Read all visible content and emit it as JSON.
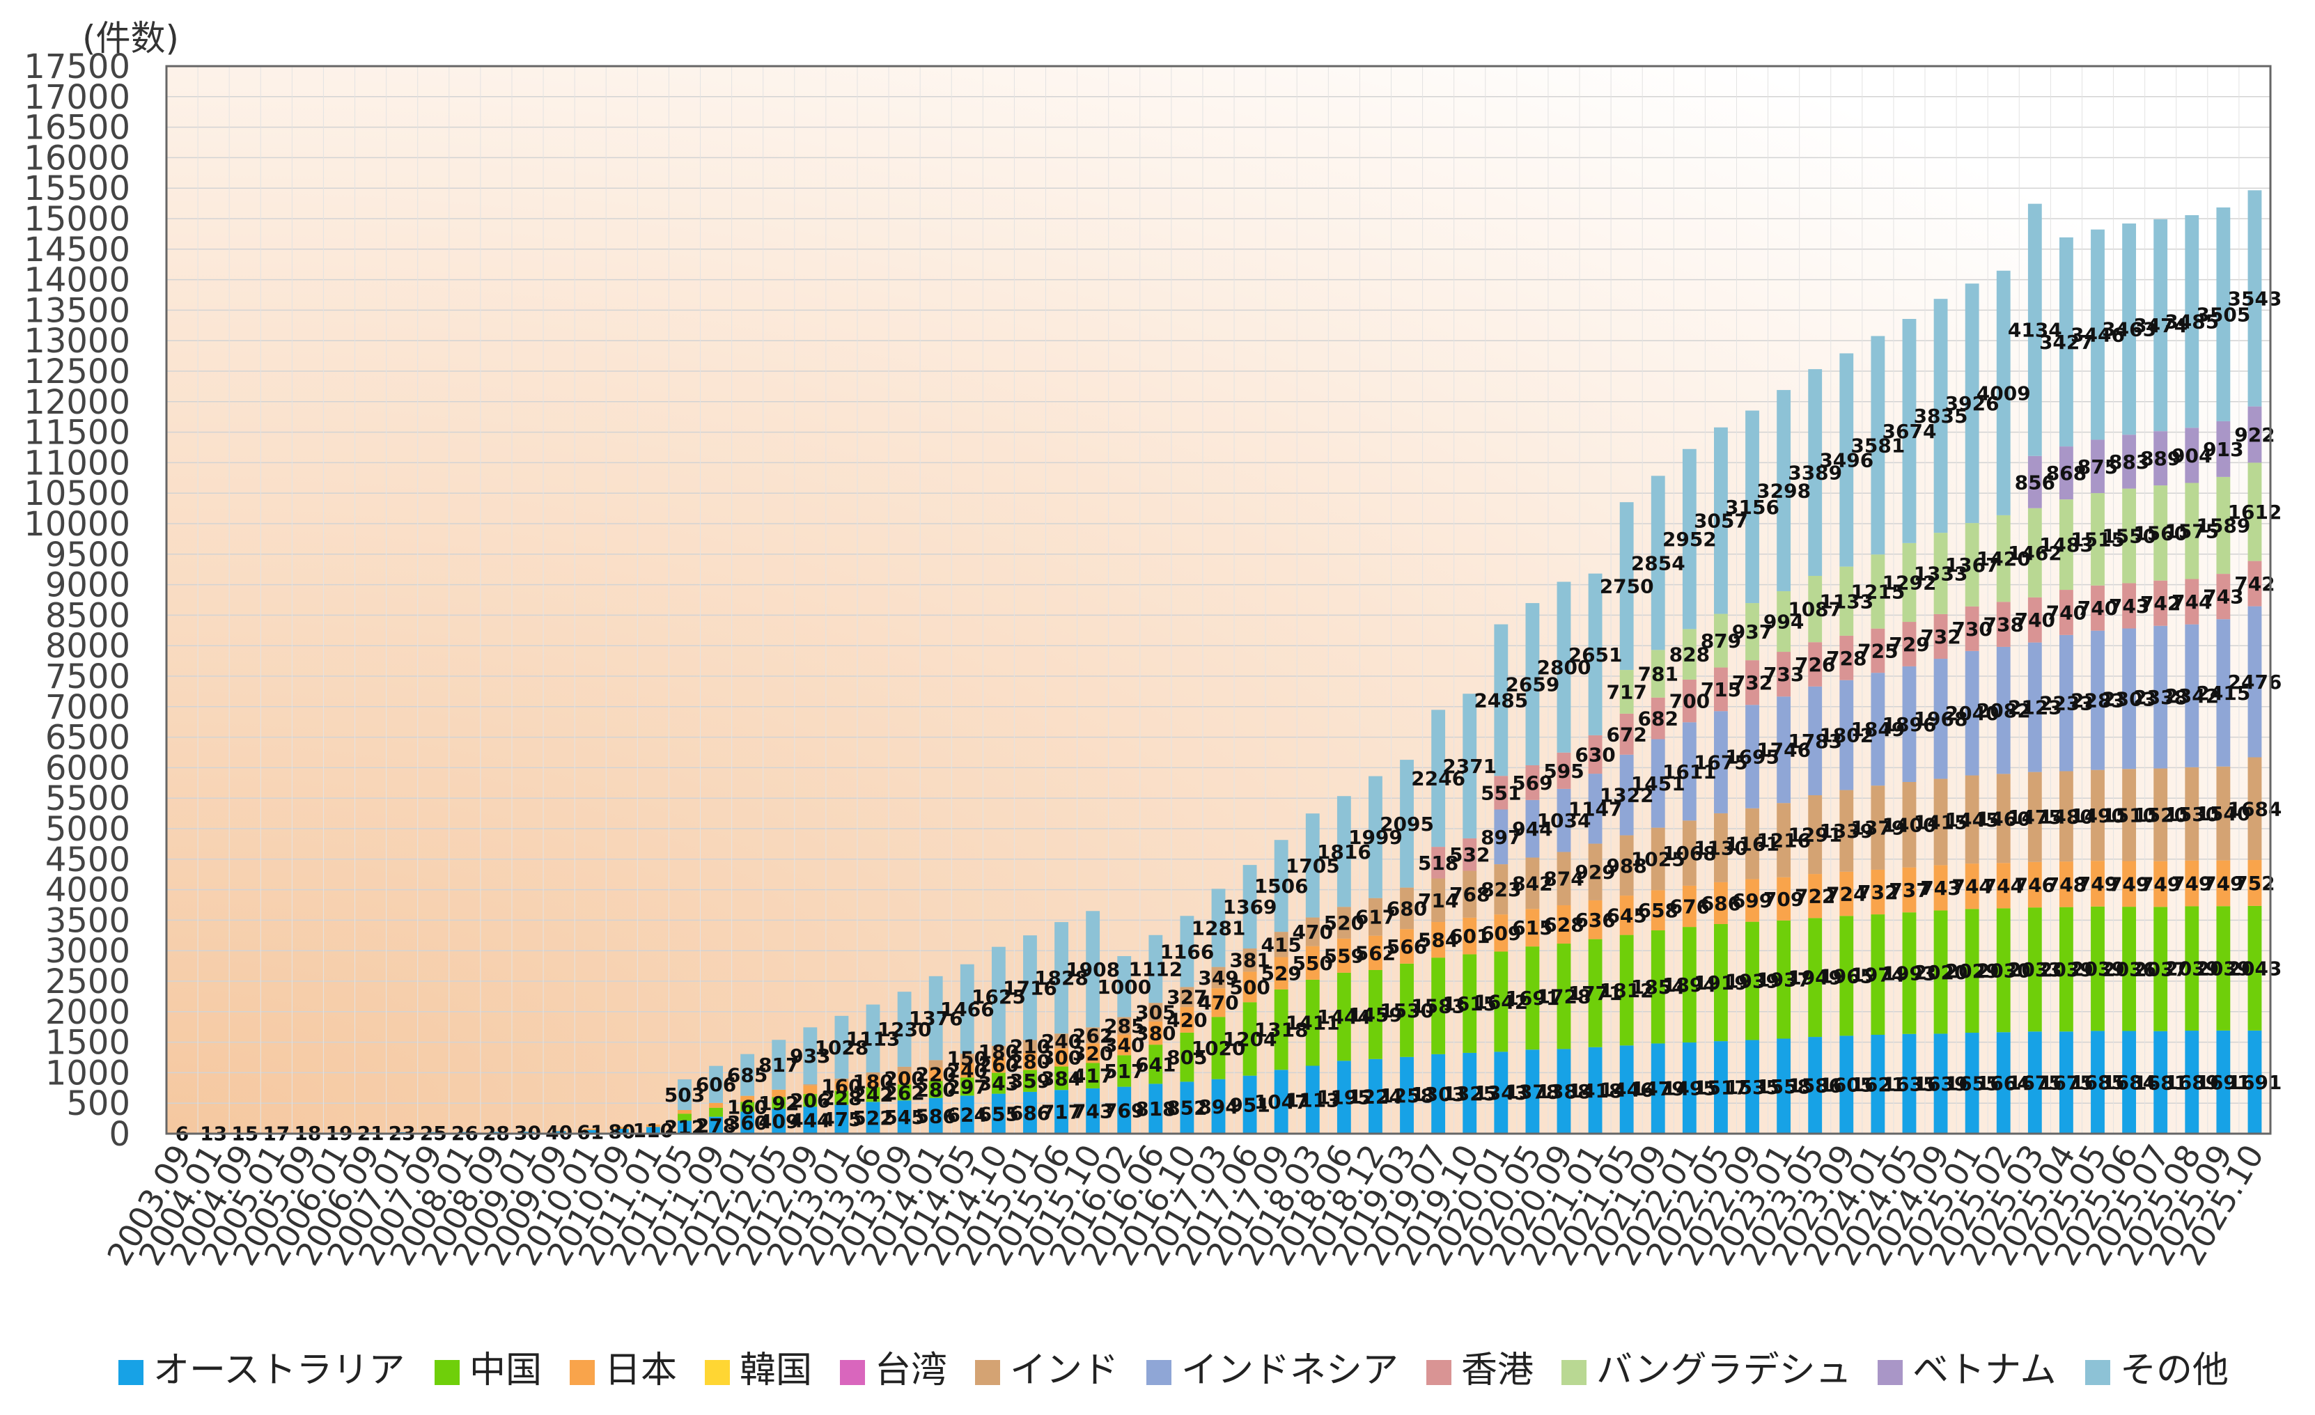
{
  "chart_data": {
    "type": "bar",
    "stacked": true,
    "title": "",
    "ylabel": "(件数)",
    "xlabel": "",
    "ylim": [
      0,
      17500
    ],
    "ytick_step": 500,
    "grid": true,
    "legend_position": "bottom",
    "categories": [
      "2003.09",
      "2004.01",
      "2004.09",
      "2005.01",
      "2005.09",
      "2006.01",
      "2006.09",
      "2007.01",
      "2007.09",
      "2008.01",
      "2008.09",
      "2009.01",
      "2009.09",
      "2010.01",
      "2010.09",
      "2011.01",
      "2011.05",
      "2011.09",
      "2012.01",
      "2012.05",
      "2012.09",
      "2013.01",
      "2013.06",
      "2013.09",
      "2014.01",
      "2014.05",
      "2014.10",
      "2015.01",
      "2015.06",
      "2015.10",
      "2016.02",
      "2016.06",
      "2016.10",
      "2017.03",
      "2017.06",
      "2017.09",
      "2018.03",
      "2018.06",
      "2018.12",
      "2019.03",
      "2019.07",
      "2019.10",
      "2020.01",
      "2020.05",
      "2020.09",
      "2021.01",
      "2021.05",
      "2021.09",
      "2022.01",
      "2022.05",
      "2022.09",
      "2023.01",
      "2023.05",
      "2023.09",
      "2024.01",
      "2024.05",
      "2024.09",
      "2025.01",
      "2025.02",
      "2025.03",
      "2025.04",
      "2025.05",
      "2025.06",
      "2025.07",
      "2025.08",
      "2025.09",
      "2025.10"
    ],
    "series": [
      {
        "name": "オーストラリア",
        "color": "#17a2e6",
        "values": [
          6,
          13,
          15,
          17,
          18,
          19,
          21,
          23,
          25,
          26,
          28,
          30,
          40,
          61,
          80,
          110,
          212,
          278,
          360,
          409,
          444,
          475,
          522,
          545,
          586,
          624,
          655,
          686,
          717,
          743,
          769,
          818,
          852,
          894,
          951,
          1047,
          1113,
          1195,
          1224,
          1258,
          1303,
          1325,
          1343,
          1378,
          1388,
          1418,
          1446,
          1479,
          1495,
          1517,
          1535,
          1558,
          1586,
          1605,
          1621,
          1635,
          1639,
          1655,
          1664,
          1675,
          1675,
          1685,
          1684,
          1681,
          1689,
          1691,
          1691
        ]
      },
      {
        "name": "中国",
        "color": "#6fcf0a",
        "values": [
          0,
          0,
          0,
          0,
          0,
          0,
          0,
          0,
          0,
          0,
          0,
          0,
          0,
          0,
          0,
          0,
          116,
          147,
          160,
          192,
          206,
          228,
          242,
          262,
          280,
          297,
          343,
          359,
          384,
          417,
          517,
          641,
          805,
          1020,
          1204,
          1318,
          1411,
          1444,
          1459,
          1530,
          1583,
          1615,
          1642,
          1691,
          1728,
          1771,
          1812,
          1854,
          1894,
          1919,
          1939,
          1937,
          1949,
          1965,
          1974,
          1993,
          2020,
          2029,
          2030,
          2033,
          2039,
          2039,
          2036,
          2037,
          2039,
          2039,
          2043
        ]
      },
      {
        "name": "日本",
        "color": "#f9a44b",
        "values": [
          0,
          0,
          0,
          0,
          0,
          0,
          0,
          0,
          0,
          0,
          0,
          0,
          10,
          20,
          30,
          40,
          60,
          80,
          100,
          120,
          140,
          160,
          180,
          200,
          220,
          240,
          260,
          280,
          300,
          320,
          340,
          380,
          420,
          470,
          500,
          529,
          550,
          559,
          562,
          566,
          584,
          601,
          609,
          615,
          628,
          636,
          645,
          658,
          676,
          686,
          699,
          709,
          722,
          724,
          732,
          737,
          743,
          744,
          744,
          746,
          748,
          749,
          749,
          749,
          749,
          749,
          752
        ]
      },
      {
        "name": "韓国",
        "color": "#ffd633",
        "values": [
          0,
          0,
          0,
          0,
          0,
          0,
          0,
          0,
          0,
          0,
          0,
          0,
          0,
          0,
          0,
          0,
          0,
          0,
          0,
          0,
          0,
          0,
          0,
          0,
          0,
          0,
          0,
          0,
          0,
          0,
          0,
          0,
          0,
          0,
          0,
          0,
          0,
          0,
          0,
          0,
          0,
          0,
          0,
          0,
          0,
          0,
          0,
          0,
          0,
          0,
          0,
          0,
          0,
          0,
          0,
          0,
          0,
          0,
          0,
          0,
          0,
          0,
          0,
          0,
          0,
          0,
          0
        ]
      },
      {
        "name": "台湾",
        "color": "#d966bd",
        "values": [
          0,
          0,
          0,
          0,
          0,
          0,
          0,
          0,
          0,
          0,
          0,
          0,
          0,
          0,
          0,
          0,
          0,
          0,
          0,
          0,
          0,
          0,
          0,
          0,
          0,
          0,
          0,
          0,
          0,
          0,
          0,
          0,
          0,
          0,
          0,
          0,
          0,
          0,
          0,
          0,
          0,
          0,
          0,
          0,
          0,
          0,
          0,
          0,
          0,
          0,
          0,
          0,
          0,
          0,
          0,
          0,
          0,
          0,
          0,
          0,
          0,
          0,
          0,
          0,
          0,
          0,
          0
        ]
      },
      {
        "name": "インド",
        "color": "#d4a373",
        "values": [
          0,
          0,
          0,
          0,
          0,
          0,
          0,
          0,
          0,
          0,
          0,
          0,
          0,
          0,
          0,
          0,
          0,
          0,
          0,
          0,
          20,
          40,
          60,
          90,
          120,
          150,
          180,
          210,
          240,
          262,
          285,
          305,
          327,
          349,
          381,
          415,
          470,
          520,
          617,
          680,
          714,
          768,
          823,
          842,
          874,
          929,
          988,
          1025,
          1068,
          1130,
          1161,
          1216,
          1291,
          1339,
          1379,
          1400,
          1415,
          1445,
          1460,
          1475,
          1480,
          1490,
          1510,
          1520,
          1530,
          1540,
          1684
        ]
      },
      {
        "name": "インドネシア",
        "color": "#8fa6d6",
        "values": [
          0,
          0,
          0,
          0,
          0,
          0,
          0,
          0,
          0,
          0,
          0,
          0,
          0,
          0,
          0,
          0,
          0,
          0,
          0,
          0,
          0,
          0,
          0,
          0,
          0,
          0,
          0,
          0,
          0,
          0,
          0,
          0,
          0,
          0,
          0,
          0,
          0,
          0,
          0,
          0,
          0,
          0,
          897,
          944,
          1034,
          1147,
          1322,
          1451,
          1611,
          1675,
          1695,
          1746,
          1783,
          1802,
          1849,
          1896,
          1968,
          2040,
          2082,
          2123,
          2233,
          2283,
          2303,
          2338,
          2342,
          2415,
          2476
        ]
      },
      {
        "name": "香港",
        "color": "#d99494",
        "values": [
          0,
          0,
          0,
          0,
          0,
          0,
          0,
          0,
          0,
          0,
          0,
          0,
          0,
          0,
          0,
          0,
          0,
          0,
          0,
          0,
          0,
          0,
          0,
          0,
          0,
          0,
          0,
          0,
          0,
          0,
          0,
          0,
          0,
          0,
          0,
          0,
          0,
          0,
          0,
          0,
          518,
          532,
          551,
          569,
          595,
          630,
          672,
          682,
          700,
          715,
          732,
          733,
          726,
          728,
          725,
          729,
          732,
          730,
          738,
          740,
          740,
          740,
          743,
          742,
          744,
          743,
          742
        ]
      },
      {
        "name": "バングラデシュ",
        "color": "#b9d893",
        "values": [
          0,
          0,
          0,
          0,
          0,
          0,
          0,
          0,
          0,
          0,
          0,
          0,
          0,
          0,
          0,
          0,
          0,
          0,
          0,
          0,
          0,
          0,
          0,
          0,
          0,
          0,
          0,
          0,
          0,
          0,
          0,
          0,
          0,
          0,
          0,
          0,
          0,
          0,
          0,
          0,
          0,
          0,
          0,
          0,
          0,
          0,
          717,
          781,
          828,
          879,
          937,
          994,
          1087,
          1133,
          1215,
          1292,
          1333,
          1367,
          1420,
          1462,
          1483,
          1515,
          1550,
          1560,
          1575,
          1589,
          1612
        ]
      },
      {
        "name": "ベトナム",
        "color": "#a996c7",
        "values": [
          0,
          0,
          0,
          0,
          0,
          0,
          0,
          0,
          0,
          0,
          0,
          0,
          0,
          0,
          0,
          0,
          0,
          0,
          0,
          0,
          0,
          0,
          0,
          0,
          0,
          0,
          0,
          0,
          0,
          0,
          0,
          0,
          0,
          0,
          0,
          0,
          0,
          0,
          0,
          0,
          0,
          0,
          0,
          0,
          0,
          0,
          0,
          0,
          0,
          0,
          0,
          0,
          0,
          0,
          0,
          0,
          0,
          0,
          0,
          856,
          868,
          875,
          883,
          889,
          904,
          913,
          922
        ]
      },
      {
        "name": "その他",
        "color": "#8dc2d6",
        "values": [
          0,
          0,
          0,
          0,
          0,
          0,
          0,
          0,
          0,
          0,
          0,
          0,
          0,
          0,
          0,
          0,
          503,
          606,
          685,
          817,
          933,
          1028,
          1113,
          1230,
          1376,
          1466,
          1625,
          1716,
          1828,
          1908,
          1000,
          1112,
          1166,
          1281,
          1369,
          1506,
          1705,
          1816,
          1999,
          2095,
          2246,
          2371,
          2485,
          2659,
          2800,
          2651,
          2750,
          2854,
          2952,
          3057,
          3156,
          3298,
          3389,
          3496,
          3581,
          3674,
          3835,
          3926,
          4009,
          4134,
          3427,
          3446,
          3463,
          3474,
          3485,
          3505,
          3543
        ]
      }
    ]
  }
}
